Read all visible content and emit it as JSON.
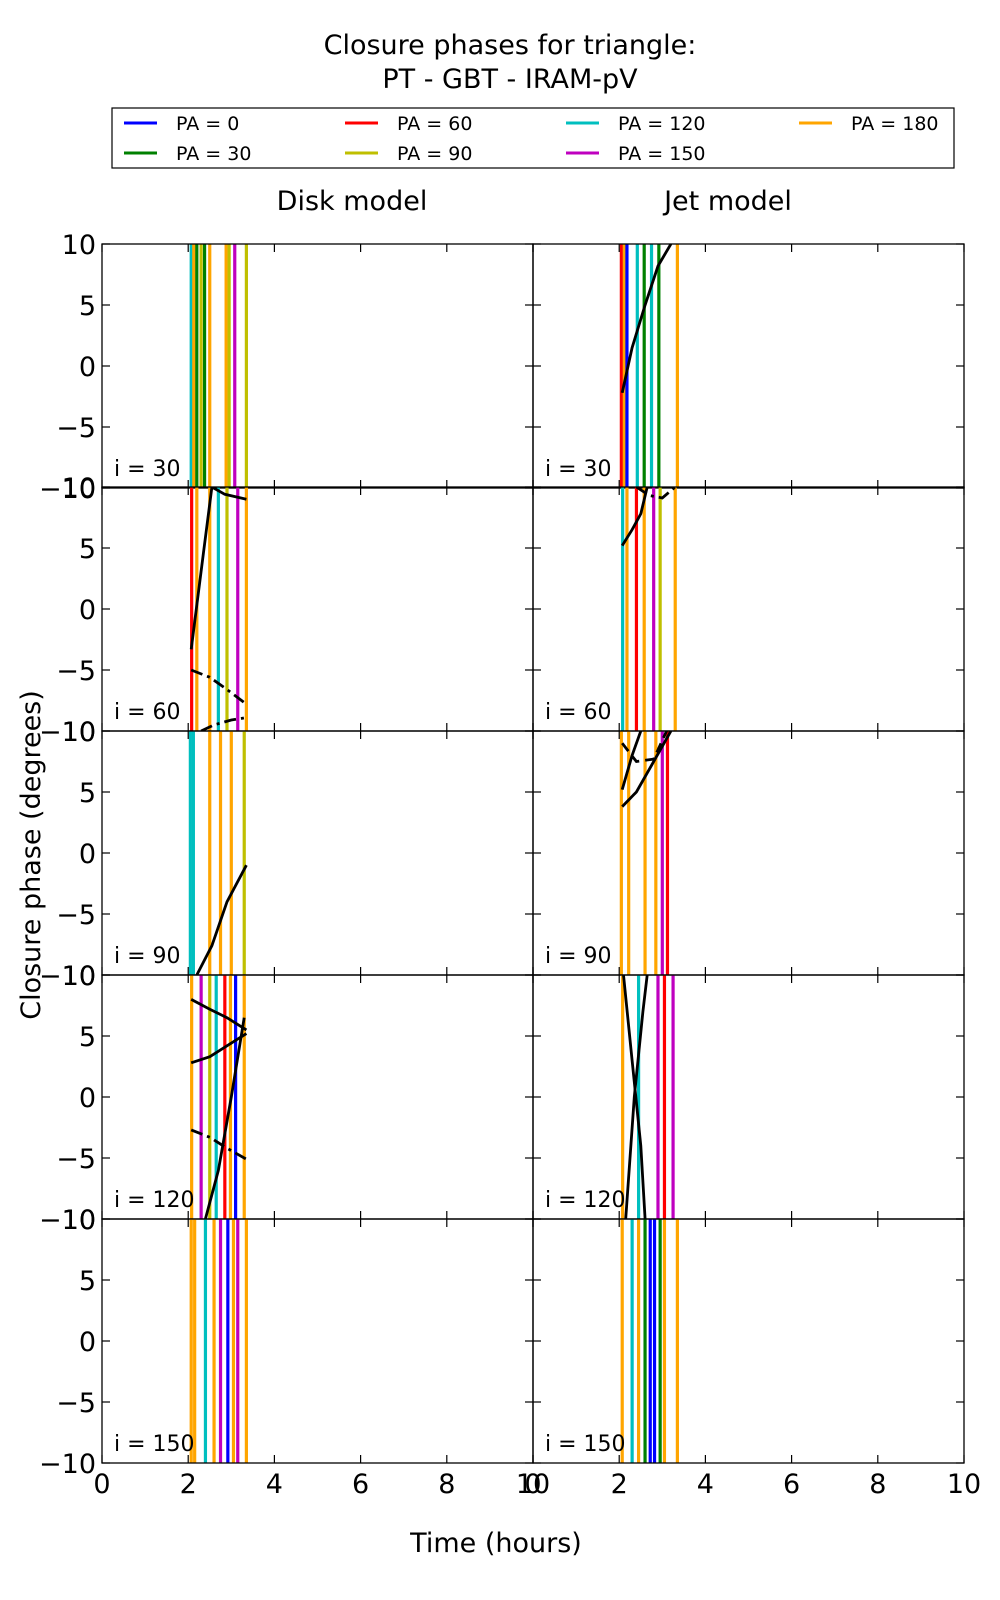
{
  "figure": {
    "title_line1": "Closure phases for triangle:",
    "title_line2": "PT - GBT - IRAM-pV",
    "xlabel": "Time (hours)",
    "ylabel": "Closure phase (degrees)"
  },
  "chart_data": {
    "type": "line",
    "xlim": [
      0,
      10
    ],
    "ylim": [
      -10,
      10
    ],
    "xticks": [
      0,
      2,
      4,
      6,
      8,
      10
    ],
    "yticks": [
      -10,
      -5,
      0,
      5,
      10
    ],
    "grid": false,
    "legend_position": "top",
    "column_titles": [
      "Disk model",
      "Jet model"
    ],
    "panel_labels": [
      "i = 30",
      "i = 60",
      "i = 90",
      "i = 120",
      "i = 150"
    ],
    "legend": [
      {
        "name": "PA = 0",
        "color": "#0000ff"
      },
      {
        "name": "PA = 30",
        "color": "#008000"
      },
      {
        "name": "PA = 60",
        "color": "#ff0000"
      },
      {
        "name": "PA = 90",
        "color": "#bfbf00"
      },
      {
        "name": "PA = 120",
        "color": "#00bfbf"
      },
      {
        "name": "PA = 150",
        "color": "#bf00bf"
      },
      {
        "name": "PA = 180",
        "color": "#ffa500"
      }
    ],
    "panels": [
      {
        "column": 0,
        "row": 0,
        "vertical_lines": [
          {
            "x": 2.07,
            "color": "#00bfbf"
          },
          {
            "x": 2.13,
            "color": "#ffa500"
          },
          {
            "x": 2.2,
            "color": "#008000"
          },
          {
            "x": 2.3,
            "color": "#bfbf00"
          },
          {
            "x": 2.38,
            "color": "#008000"
          },
          {
            "x": 2.5,
            "color": "#ffa500"
          },
          {
            "x": 2.88,
            "color": "#ffa500"
          },
          {
            "x": 2.95,
            "color": "#bfbf00"
          },
          {
            "x": 3.08,
            "color": "#bf00bf"
          },
          {
            "x": 3.35,
            "color": "#bfbf00"
          }
        ],
        "curves": []
      },
      {
        "column": 1,
        "row": 0,
        "vertical_lines": [
          {
            "x": 2.05,
            "color": "#ff0000"
          },
          {
            "x": 2.12,
            "color": "#ffa500"
          },
          {
            "x": 2.18,
            "color": "#0000ff"
          },
          {
            "x": 2.42,
            "color": "#00bfbf"
          },
          {
            "x": 2.58,
            "color": "#008000"
          },
          {
            "x": 2.75,
            "color": "#00bfbf"
          },
          {
            "x": 2.92,
            "color": "#008000"
          },
          {
            "x": 3.35,
            "color": "#ffa500"
          }
        ],
        "curves": [
          {
            "style": "solid",
            "points": [
              [
                2.07,
                -2.2
              ],
              [
                2.3,
                1.5
              ],
              [
                2.6,
                5.0
              ],
              [
                2.9,
                8.2
              ],
              [
                3.2,
                10.0
              ]
            ]
          }
        ]
      },
      {
        "column": 0,
        "row": 1,
        "vertical_lines": [
          {
            "x": 2.08,
            "color": "#ff0000"
          },
          {
            "x": 2.2,
            "color": "#ffa500"
          },
          {
            "x": 2.5,
            "color": "#ffa500"
          },
          {
            "x": 2.7,
            "color": "#00bfbf"
          },
          {
            "x": 2.9,
            "color": "#bfbf00"
          },
          {
            "x": 3.15,
            "color": "#bf00bf"
          },
          {
            "x": 3.35,
            "color": "#ffa500"
          }
        ],
        "curves": [
          {
            "style": "solid",
            "points": [
              [
                2.07,
                -3.3
              ],
              [
                2.35,
                4.5
              ],
              [
                2.55,
                10.0
              ],
              [
                2.85,
                9.4
              ],
              [
                3.35,
                9.0
              ]
            ]
          },
          {
            "style": "dashdot",
            "points": [
              [
                2.07,
                -5.0
              ],
              [
                2.5,
                -5.6
              ],
              [
                2.9,
                -6.6
              ],
              [
                3.35,
                -7.8
              ]
            ]
          },
          {
            "style": "dashdot",
            "points": [
              [
                2.3,
                -10.0
              ],
              [
                2.6,
                -9.5
              ],
              [
                3.0,
                -9.1
              ],
              [
                3.35,
                -8.9
              ]
            ]
          }
        ]
      },
      {
        "column": 1,
        "row": 1,
        "vertical_lines": [
          {
            "x": 2.08,
            "color": "#00bfbf"
          },
          {
            "x": 2.18,
            "color": "#ffa500"
          },
          {
            "x": 2.4,
            "color": "#ff0000"
          },
          {
            "x": 2.58,
            "color": "#ffa500"
          },
          {
            "x": 2.8,
            "color": "#bf00bf"
          },
          {
            "x": 2.95,
            "color": "#bfbf00"
          },
          {
            "x": 3.3,
            "color": "#ffa500"
          }
        ],
        "curves": [
          {
            "style": "solid",
            "points": [
              [
                2.07,
                5.2
              ],
              [
                2.3,
                6.5
              ],
              [
                2.5,
                7.8
              ],
              [
                2.65,
                10.0
              ]
            ]
          },
          {
            "style": "dashdot",
            "points": [
              [
                2.4,
                10.0
              ],
              [
                2.7,
                9.3
              ],
              [
                3.0,
                9.1
              ],
              [
                3.3,
                10.0
              ]
            ]
          }
        ]
      },
      {
        "column": 0,
        "row": 2,
        "vertical_lines": [
          {
            "x": 2.05,
            "color": "#00bfbf"
          },
          {
            "x": 2.12,
            "color": "#00bfbf"
          },
          {
            "x": 2.5,
            "color": "#ffa500"
          },
          {
            "x": 2.75,
            "color": "#ffa500"
          },
          {
            "x": 3.0,
            "color": "#ffa500"
          },
          {
            "x": 3.3,
            "color": "#bfbf00"
          }
        ],
        "curves": [
          {
            "style": "solid",
            "points": [
              [
                2.2,
                -10.0
              ],
              [
                2.55,
                -7.6
              ],
              [
                2.9,
                -4.0
              ],
              [
                3.35,
                -1.0
              ]
            ]
          }
        ]
      },
      {
        "column": 1,
        "row": 2,
        "vertical_lines": [
          {
            "x": 2.05,
            "color": "#ffa500"
          },
          {
            "x": 2.22,
            "color": "#ffa500"
          },
          {
            "x": 2.6,
            "color": "#ffa500"
          },
          {
            "x": 2.85,
            "color": "#ffa500"
          },
          {
            "x": 3.0,
            "color": "#bf00bf"
          },
          {
            "x": 3.12,
            "color": "#ff0000"
          }
        ],
        "curves": [
          {
            "style": "solid",
            "points": [
              [
                2.07,
                5.2
              ],
              [
                2.3,
                8.0
              ],
              [
                2.5,
                10.0
              ]
            ]
          },
          {
            "style": "dashed",
            "points": [
              [
                2.07,
                9.0
              ],
              [
                2.4,
                7.5
              ],
              [
                2.8,
                7.7
              ],
              [
                3.1,
                10.0
              ]
            ]
          },
          {
            "style": "solid",
            "points": [
              [
                2.07,
                3.8
              ],
              [
                2.4,
                5.0
              ],
              [
                2.8,
                7.5
              ],
              [
                3.2,
                10.0
              ]
            ]
          }
        ]
      },
      {
        "column": 0,
        "row": 3,
        "vertical_lines": [
          {
            "x": 2.08,
            "color": "#ffa500"
          },
          {
            "x": 2.3,
            "color": "#bf00bf"
          },
          {
            "x": 2.5,
            "color": "#bfbf00"
          },
          {
            "x": 2.65,
            "color": "#00bfbf"
          },
          {
            "x": 2.85,
            "color": "#ff0000"
          },
          {
            "x": 2.98,
            "color": "#ffa500"
          },
          {
            "x": 3.1,
            "color": "#0000ff"
          },
          {
            "x": 3.3,
            "color": "#ffa500"
          }
        ],
        "curves": [
          {
            "style": "solid",
            "points": [
              [
                2.07,
                8.0
              ],
              [
                2.5,
                7.2
              ],
              [
                2.9,
                6.5
              ],
              [
                3.35,
                5.5
              ]
            ]
          },
          {
            "style": "solid",
            "points": [
              [
                2.07,
                2.8
              ],
              [
                2.5,
                3.3
              ],
              [
                2.9,
                4.2
              ],
              [
                3.35,
                5.2
              ]
            ]
          },
          {
            "style": "dashdot",
            "points": [
              [
                2.07,
                -2.7
              ],
              [
                2.5,
                -3.3
              ],
              [
                2.9,
                -4.2
              ],
              [
                3.35,
                -5.1
              ]
            ]
          },
          {
            "style": "solid",
            "points": [
              [
                2.4,
                -10.0
              ],
              [
                2.7,
                -6.0
              ],
              [
                3.0,
                0.0
              ],
              [
                3.3,
                6.5
              ]
            ]
          }
        ]
      },
      {
        "column": 1,
        "row": 3,
        "vertical_lines": [
          {
            "x": 2.08,
            "color": "#ffa500"
          },
          {
            "x": 2.45,
            "color": "#00bfbf"
          },
          {
            "x": 2.9,
            "color": "#bf00bf"
          },
          {
            "x": 3.05,
            "color": "#ff0000"
          },
          {
            "x": 3.25,
            "color": "#bf00bf"
          }
        ],
        "curves": [
          {
            "style": "solid",
            "points": [
              [
                2.1,
                10.0
              ],
              [
                2.3,
                3.0
              ],
              [
                2.5,
                -4.0
              ],
              [
                2.6,
                -10.0
              ]
            ]
          },
          {
            "style": "solid",
            "points": [
              [
                2.15,
                -10.0
              ],
              [
                2.35,
                0.0
              ],
              [
                2.55,
                7.0
              ],
              [
                2.65,
                10.0
              ]
            ]
          }
        ]
      },
      {
        "column": 0,
        "row": 4,
        "vertical_lines": [
          {
            "x": 2.07,
            "color": "#ffa500"
          },
          {
            "x": 2.15,
            "color": "#ffa500"
          },
          {
            "x": 2.4,
            "color": "#00bfbf"
          },
          {
            "x": 2.6,
            "color": "#ffa500"
          },
          {
            "x": 2.75,
            "color": "#bf00bf"
          },
          {
            "x": 2.92,
            "color": "#0000ff"
          },
          {
            "x": 3.05,
            "color": "#ffa500"
          },
          {
            "x": 3.15,
            "color": "#bf00bf"
          },
          {
            "x": 3.35,
            "color": "#ffa500"
          }
        ],
        "curves": []
      },
      {
        "column": 1,
        "row": 4,
        "vertical_lines": [
          {
            "x": 2.07,
            "color": "#ffa500"
          },
          {
            "x": 2.3,
            "color": "#00bfbf"
          },
          {
            "x": 2.45,
            "color": "#ffa500"
          },
          {
            "x": 2.6,
            "color": "#008000"
          },
          {
            "x": 2.72,
            "color": "#0000ff"
          },
          {
            "x": 2.82,
            "color": "#0000ff"
          },
          {
            "x": 2.95,
            "color": "#008000"
          },
          {
            "x": 3.05,
            "color": "#ffa500"
          },
          {
            "x": 3.35,
            "color": "#ffa500"
          }
        ],
        "curves": []
      }
    ]
  }
}
